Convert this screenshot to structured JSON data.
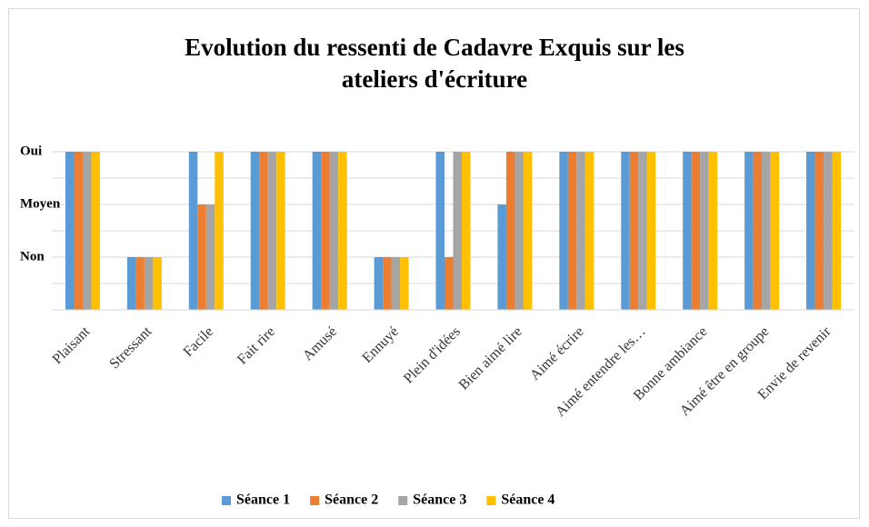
{
  "chart_data": {
    "type": "bar",
    "title": [
      "Evolution du ressenti de Cadavre Exquis sur les",
      "ateliers d'écriture"
    ],
    "categories": [
      "Plaisant",
      "Stressant",
      "Facile",
      "Fait rire",
      "Amusé",
      "Ennuyé",
      "Plein d'idées",
      "Bien aimé lire",
      "Aimé écrire",
      "Aimé entendre les…",
      "Bonne ambiance",
      "Aimé être en groupe",
      "Envie de revenir"
    ],
    "series": [
      {
        "name": "Séance 1",
        "color": "#5b9bd5",
        "values": [
          6,
          2,
          6,
          6,
          6,
          2,
          6,
          4,
          6,
          6,
          6,
          6,
          6
        ]
      },
      {
        "name": "Séance 2",
        "color": "#ed7d31",
        "values": [
          6,
          2,
          4,
          6,
          6,
          2,
          2,
          6,
          6,
          6,
          6,
          6,
          6
        ]
      },
      {
        "name": "Séance 3",
        "color": "#a5a5a5",
        "values": [
          6,
          2,
          4,
          6,
          6,
          2,
          6,
          6,
          6,
          6,
          6,
          6,
          6
        ]
      },
      {
        "name": "Séance 4",
        "color": "#ffc000",
        "values": [
          6,
          2,
          6,
          6,
          6,
          2,
          6,
          6,
          6,
          6,
          6,
          6,
          6
        ]
      }
    ],
    "ylim": [
      0,
      6
    ],
    "yticks": [
      {
        "value": 2,
        "label": "Non"
      },
      {
        "value": 4,
        "label": "Moyen"
      },
      {
        "value": 6,
        "label": "Oui"
      }
    ],
    "ygrid": [
      0,
      1,
      2,
      3,
      4,
      5,
      6
    ],
    "grid": true,
    "legend": "bottom"
  }
}
